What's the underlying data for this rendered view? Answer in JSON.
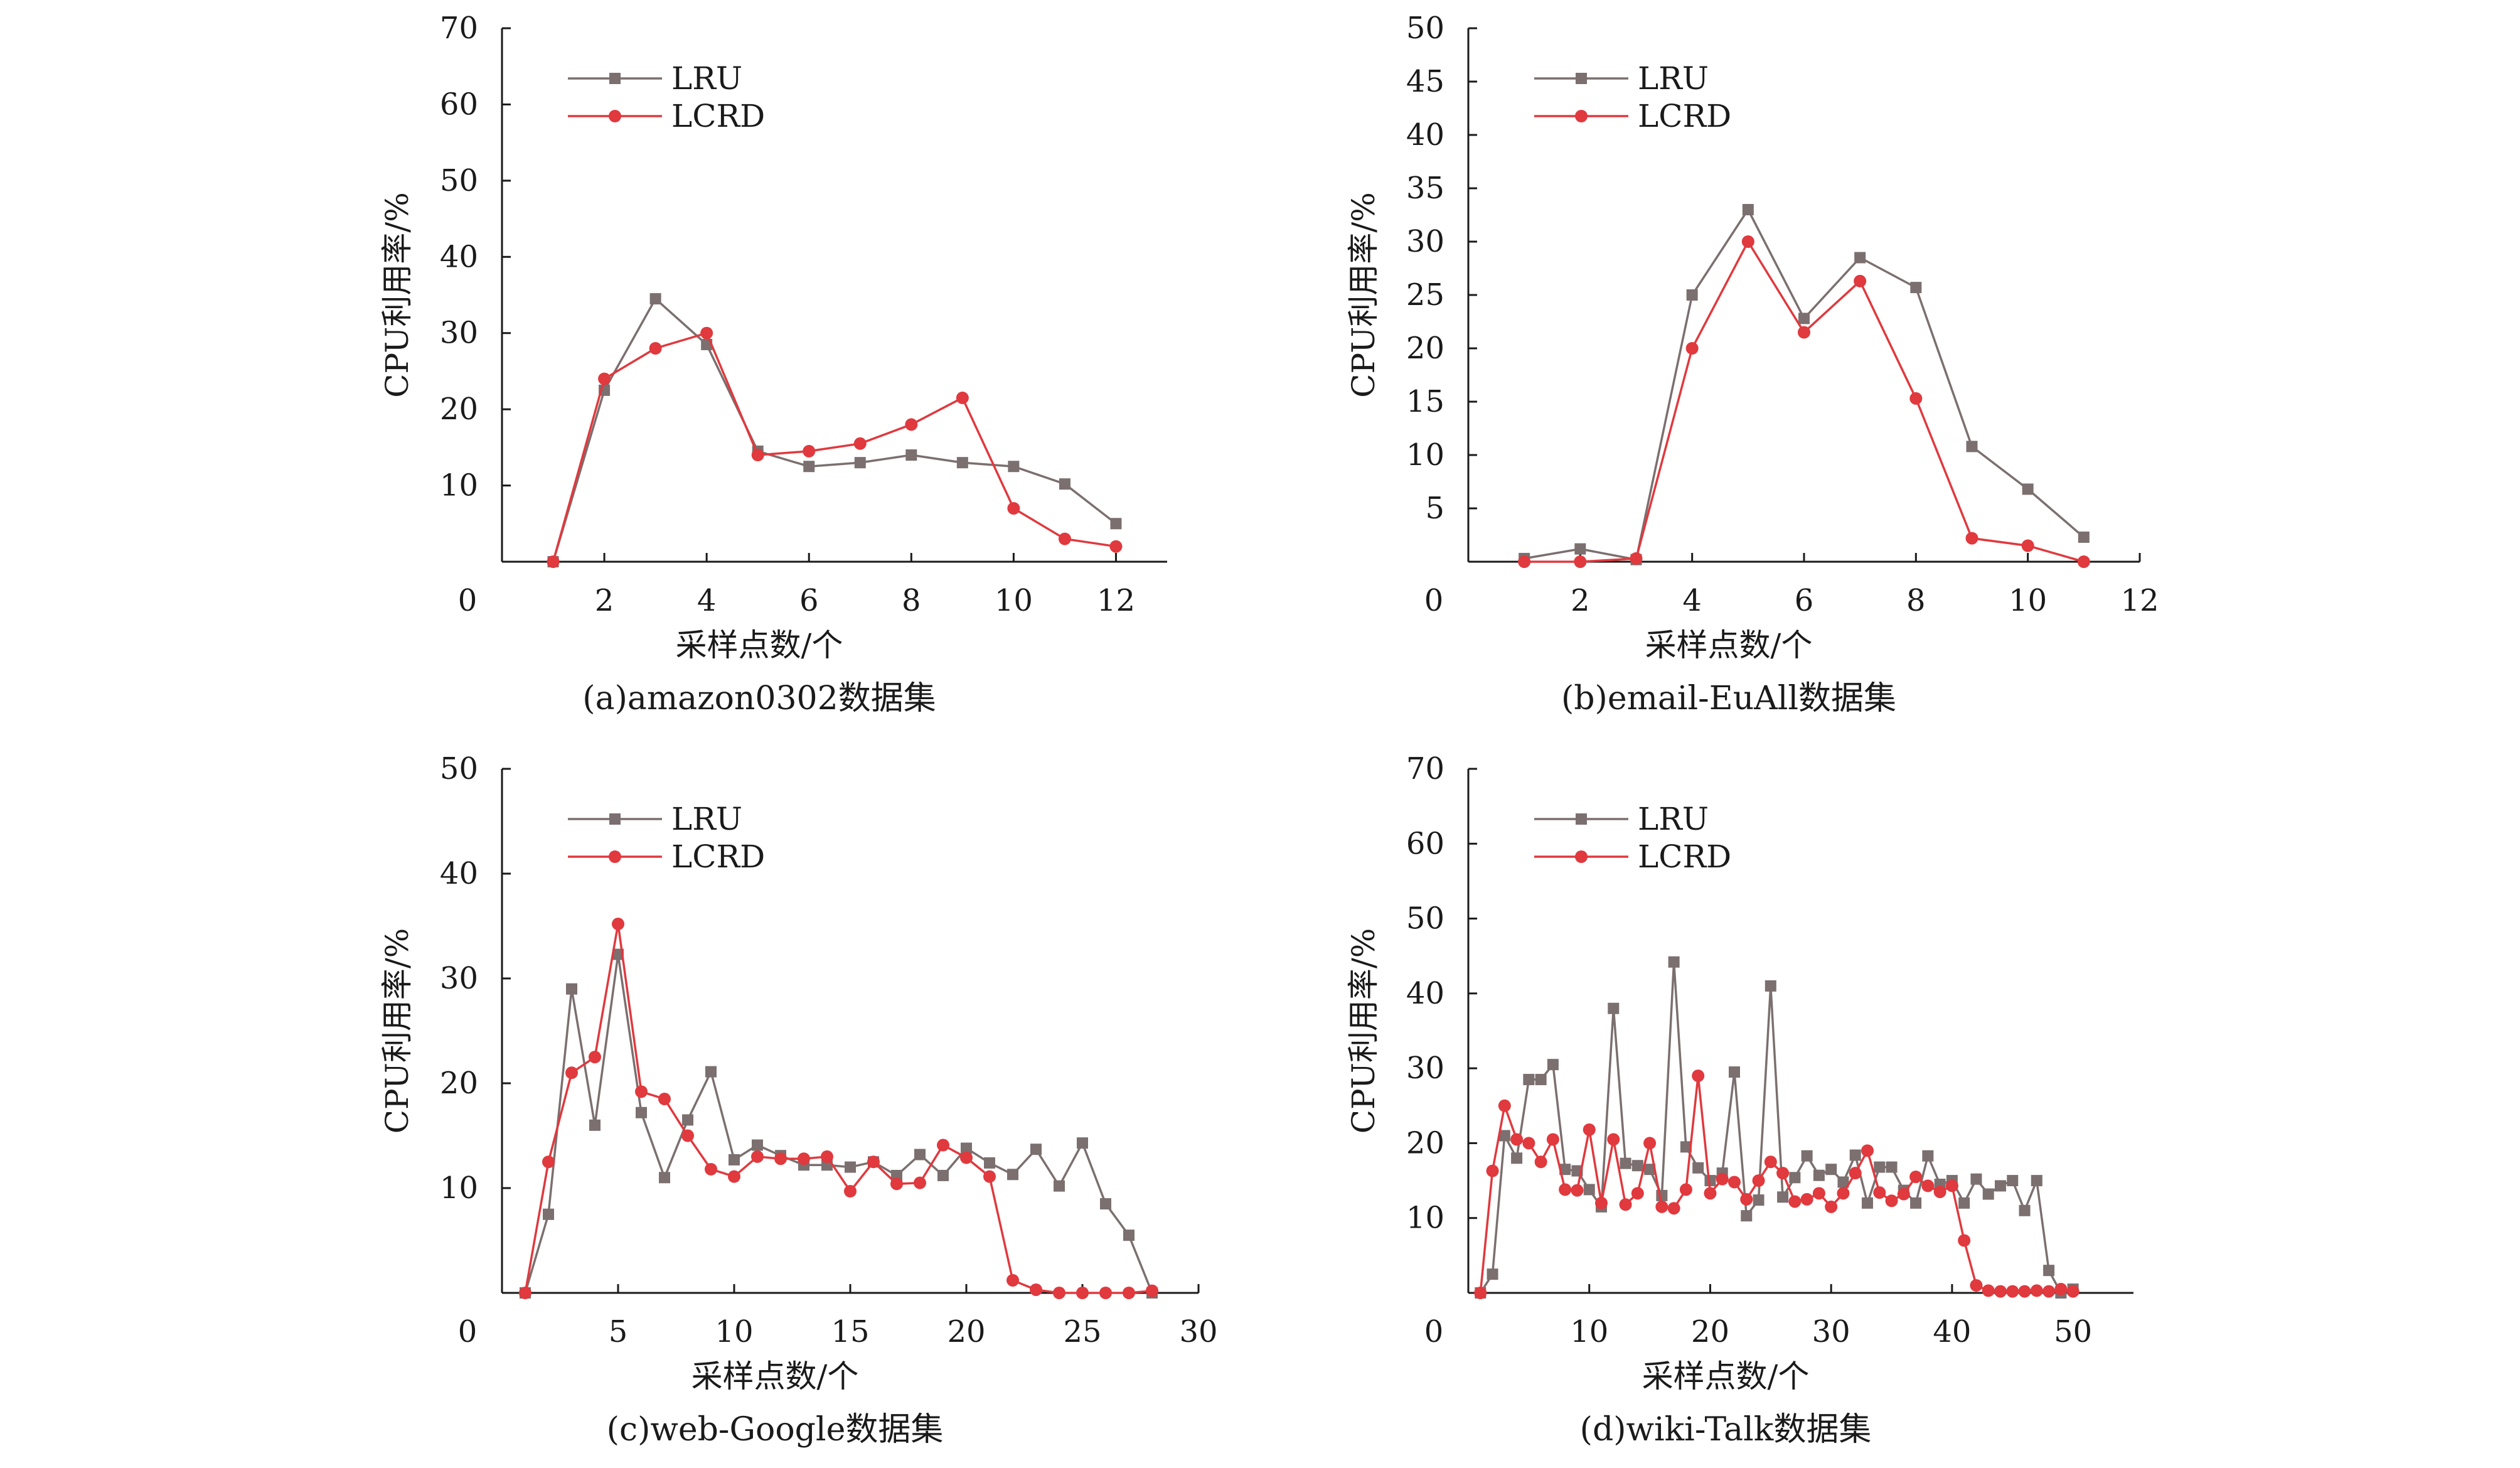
{
  "colors": {
    "LRU": "#7b6f6f",
    "LCRD": "#e0393e",
    "axis": "#1a1a1a"
  },
  "chart_data": [
    {
      "type": "line",
      "caption": "(a)amazon0302数据集",
      "xlabel": "采样点数/个",
      "ylabel": "CPU利用率/%",
      "xlim": [
        0,
        13
      ],
      "ylim": [
        0,
        70
      ],
      "xticks": [
        2,
        4,
        6,
        8,
        10,
        12
      ],
      "yticks": [
        10,
        20,
        30,
        40,
        50,
        60,
        70
      ],
      "origin_label": "0",
      "legend_position": "top-left",
      "series": [
        {
          "name": "LRU",
          "marker": "square",
          "x": [
            1,
            2,
            3,
            4,
            5,
            6,
            7,
            8,
            9,
            10,
            11,
            12
          ],
          "values": [
            0,
            22.5,
            34.5,
            28.5,
            14.5,
            12.5,
            13,
            14,
            13,
            12.5,
            10.2,
            5
          ]
        },
        {
          "name": "LCRD",
          "marker": "circle",
          "x": [
            1,
            2,
            3,
            4,
            5,
            6,
            7,
            8,
            9,
            10,
            11,
            12
          ],
          "values": [
            0,
            24,
            28,
            30,
            14,
            14.5,
            15.5,
            18,
            21.5,
            7,
            3,
            2
          ]
        }
      ]
    },
    {
      "type": "line",
      "caption": "(b)email-EuAll数据集",
      "xlabel": "采样点数/个",
      "ylabel": "CPU利用率/%",
      "xlim": [
        0,
        12
      ],
      "ylim": [
        0,
        50
      ],
      "xticks": [
        2,
        4,
        6,
        8,
        10,
        12
      ],
      "yticks": [
        5,
        10,
        15,
        20,
        25,
        30,
        35,
        40,
        45,
        50
      ],
      "origin_label": "0",
      "legend_position": "top-left",
      "series": [
        {
          "name": "LRU",
          "marker": "square",
          "x": [
            1,
            2,
            3,
            4,
            5,
            6,
            7,
            8,
            9,
            10,
            11
          ],
          "values": [
            0.3,
            1.2,
            0.2,
            25,
            33,
            22.8,
            28.5,
            25.7,
            10.8,
            6.8,
            2.3
          ]
        },
        {
          "name": "LCRD",
          "marker": "circle",
          "x": [
            1,
            2,
            3,
            4,
            5,
            6,
            7,
            8,
            9,
            10,
            11
          ],
          "values": [
            0,
            0,
            0.3,
            20,
            30,
            21.5,
            26.3,
            15.3,
            2.2,
            1.5,
            0
          ]
        }
      ]
    },
    {
      "type": "line",
      "caption": "(c)web-Google数据集",
      "xlabel": "采样点数/个",
      "ylabel": "CPU利用率/%",
      "xlim": [
        0,
        30
      ],
      "ylim": [
        0,
        50
      ],
      "xticks": [
        5,
        10,
        15,
        20,
        25,
        30
      ],
      "yticks": [
        10,
        20,
        30,
        40,
        50
      ],
      "origin_label": "0",
      "legend_position": "top-left",
      "series": [
        {
          "name": "LRU",
          "marker": "square",
          "x": [
            1,
            2,
            3,
            4,
            5,
            6,
            7,
            8,
            9,
            10,
            11,
            12,
            13,
            14,
            15,
            16,
            17,
            18,
            19,
            20,
            21,
            22,
            23,
            24,
            25,
            26,
            27,
            28
          ],
          "values": [
            0,
            7.5,
            29,
            16,
            32.3,
            17.2,
            11,
            16.5,
            21.1,
            12.7,
            14.1,
            13.1,
            12.2,
            12.2,
            12,
            12.5,
            11.2,
            13.2,
            11.2,
            13.8,
            12.4,
            11.3,
            13.7,
            10.2,
            14.3,
            8.5,
            5.5,
            0
          ]
        },
        {
          "name": "LCRD",
          "marker": "circle",
          "x": [
            1,
            2,
            3,
            4,
            5,
            6,
            7,
            8,
            9,
            10,
            11,
            12,
            13,
            14,
            15,
            16,
            17,
            18,
            19,
            20,
            21,
            22,
            23,
            24,
            25,
            26,
            27,
            28
          ],
          "values": [
            0,
            12.5,
            21,
            22.5,
            35.2,
            19.2,
            18.5,
            15,
            11.8,
            11.1,
            13,
            12.8,
            12.8,
            13,
            9.7,
            12.5,
            10.4,
            10.5,
            14.1,
            12.9,
            11.1,
            1.2,
            0.3,
            0,
            0,
            0,
            0,
            0.2
          ]
        }
      ]
    },
    {
      "type": "line",
      "caption": "(d)wiki-Talk数据集",
      "xlabel": "采样点数/个",
      "ylabel": "CPU利用率/%",
      "xlim": [
        0,
        55
      ],
      "ylim": [
        0,
        70
      ],
      "xticks": [
        10,
        20,
        30,
        40,
        50
      ],
      "yticks": [
        10,
        20,
        30,
        40,
        50,
        60,
        70
      ],
      "origin_label": "0",
      "legend_position": "top-left",
      "series": [
        {
          "name": "LRU",
          "marker": "square",
          "x": [
            1,
            2,
            3,
            4,
            5,
            6,
            7,
            8,
            9,
            10,
            11,
            12,
            13,
            14,
            15,
            16,
            17,
            18,
            19,
            20,
            21,
            22,
            23,
            24,
            25,
            26,
            27,
            28,
            29,
            30,
            31,
            32,
            33,
            34,
            35,
            36,
            37,
            38,
            39,
            40,
            41,
            42,
            43,
            44,
            45,
            46,
            47,
            48,
            49,
            50
          ],
          "values": [
            0,
            2.5,
            21,
            18,
            28.5,
            28.5,
            30.5,
            16.5,
            16.3,
            13.8,
            11.5,
            38,
            17.3,
            17,
            16.5,
            13,
            44.2,
            19.5,
            16.7,
            15,
            16,
            29.5,
            10.3,
            12.4,
            41,
            12.8,
            15.4,
            18.3,
            15.7,
            16.5,
            14.8,
            18.4,
            12,
            16.8,
            16.8,
            13.7,
            12,
            18.3,
            14.5,
            15,
            12,
            15.2,
            13.2,
            14.3,
            15,
            11,
            15,
            3,
            0,
            0.5
          ]
        },
        {
          "name": "LCRD",
          "marker": "circle",
          "x": [
            1,
            2,
            3,
            4,
            5,
            6,
            7,
            8,
            9,
            10,
            11,
            12,
            13,
            14,
            15,
            16,
            17,
            18,
            19,
            20,
            21,
            22,
            23,
            24,
            25,
            26,
            27,
            28,
            29,
            30,
            31,
            32,
            33,
            34,
            35,
            36,
            37,
            38,
            39,
            40,
            41,
            42,
            43,
            44,
            45,
            46,
            47,
            48,
            49,
            50
          ],
          "values": [
            0,
            16.3,
            25,
            20.5,
            20,
            17.5,
            20.5,
            13.8,
            13.7,
            21.8,
            12,
            20.5,
            11.8,
            13.3,
            20,
            11.5,
            11.3,
            13.8,
            29,
            13.3,
            15.2,
            14.8,
            12.5,
            15,
            17.5,
            16,
            12.2,
            12.5,
            13.3,
            11.5,
            13.3,
            16,
            19,
            13.4,
            12.3,
            13.2,
            15.5,
            14.3,
            13.5,
            14.3,
            7,
            1,
            0.3,
            0.2,
            0.2,
            0.2,
            0.3,
            0.2,
            0.5,
            0.2
          ]
        }
      ]
    }
  ]
}
